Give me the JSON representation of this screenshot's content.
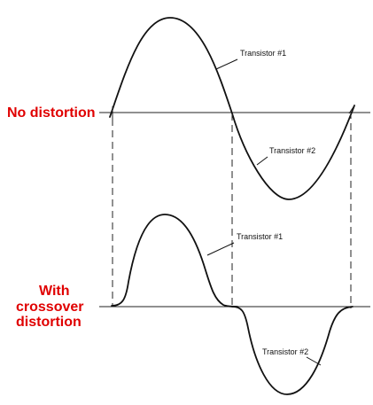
{
  "labels": {
    "no_distortion": "No distortion",
    "with_line1": "With",
    "with_line2": "crossover",
    "with_line3": "distortion"
  },
  "top_wave": {
    "transistor1": "Transistor #1",
    "transistor2": "Transistor #2"
  },
  "bottom_wave": {
    "transistor1": "Transistor #1",
    "transistor2": "Transistor #2"
  },
  "colors": {
    "label_red": "#e00000",
    "line": "#111111"
  }
}
